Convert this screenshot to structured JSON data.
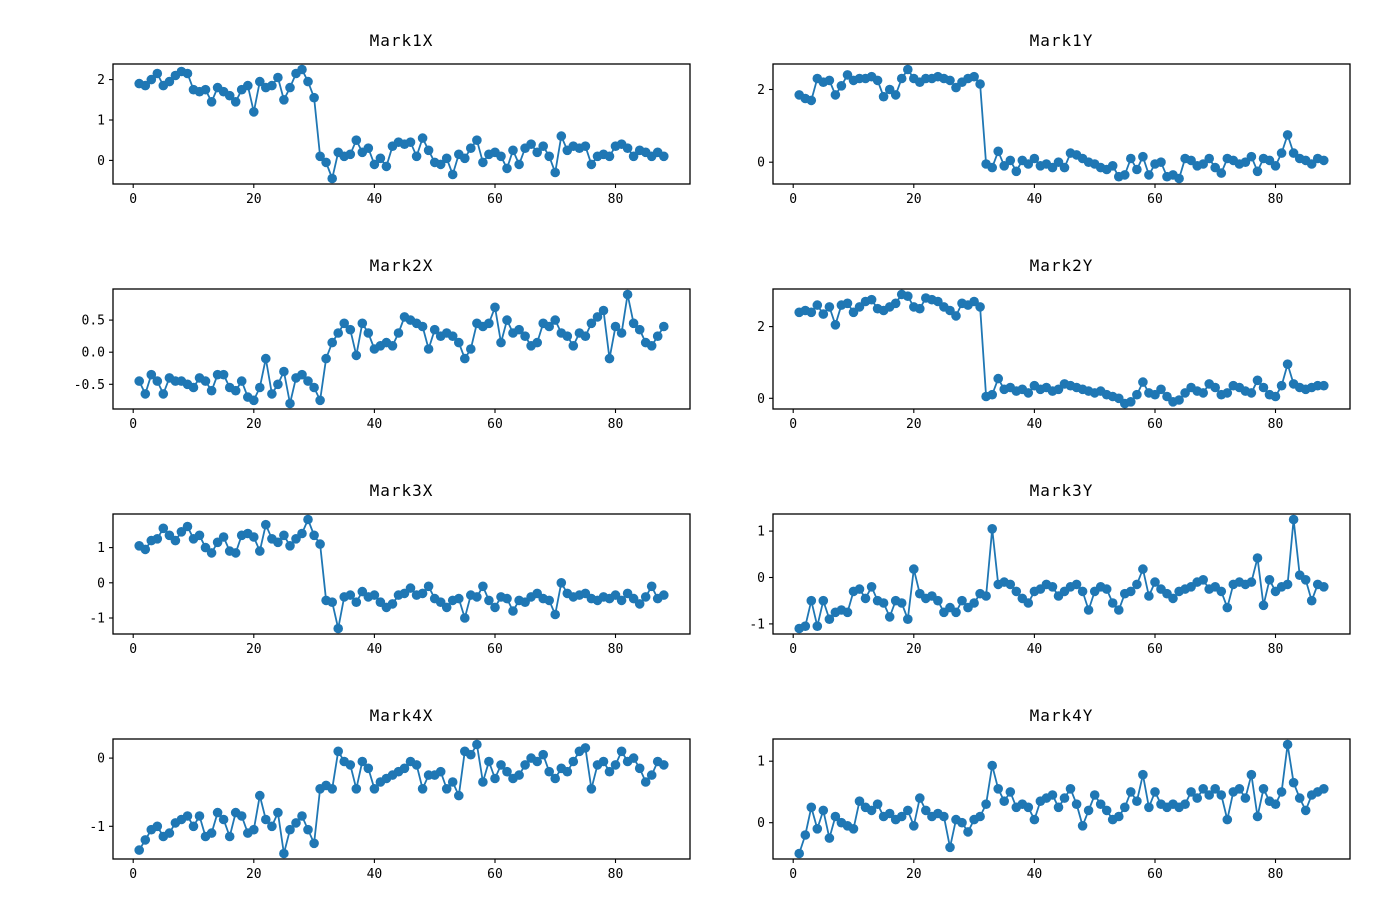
{
  "figure": {
    "background": "#ffffff",
    "grid_rows": 4,
    "grid_cols": 2
  },
  "chart_data": {
    "type": "line",
    "marker": "circle",
    "line_color": "#1f77b4",
    "axis_color": "#000000",
    "grid": false,
    "legend": false,
    "x_description": "sample index",
    "x_range": [
      1,
      88
    ],
    "xlim": [
      -3.35,
      92.35
    ],
    "xticks": [
      0,
      20,
      40,
      60,
      80
    ],
    "xtick_labels": [
      "0",
      "20",
      "40",
      "60",
      "80"
    ],
    "charts": [
      {
        "title": "Mark1X",
        "row": 0,
        "col": 0,
        "ylim": [
          -0.585,
          2.385
        ],
        "yticks": [
          0,
          1,
          2
        ],
        "ytick_labels": [
          "0",
          "1",
          "2"
        ],
        "values": [
          1.9,
          1.85,
          2.0,
          2.15,
          1.85,
          1.95,
          2.1,
          2.2,
          2.15,
          1.75,
          1.7,
          1.75,
          1.45,
          1.8,
          1.7,
          1.6,
          1.45,
          1.75,
          1.85,
          1.2,
          1.95,
          1.8,
          1.85,
          2.05,
          1.5,
          1.8,
          2.15,
          2.25,
          1.95,
          1.55,
          0.1,
          -0.05,
          -0.45,
          0.2,
          0.1,
          0.15,
          0.5,
          0.2,
          0.3,
          -0.1,
          0.05,
          -0.15,
          0.35,
          0.45,
          0.4,
          0.45,
          0.1,
          0.55,
          0.25,
          -0.05,
          -0.1,
          0.05,
          -0.35,
          0.15,
          0.05,
          0.3,
          0.5,
          -0.05,
          0.15,
          0.2,
          0.1,
          -0.2,
          0.25,
          -0.1,
          0.3,
          0.4,
          0.2,
          0.35,
          0.1,
          -0.3,
          0.6,
          0.25,
          0.35,
          0.3,
          0.35,
          -0.1,
          0.1,
          0.15,
          0.1,
          0.35,
          0.4,
          0.3,
          0.1,
          0.25,
          0.2,
          0.1,
          0.2,
          0.1
        ]
      },
      {
        "title": "Mark1Y",
        "row": 0,
        "col": 1,
        "ylim": [
          -0.6,
          2.7
        ],
        "yticks": [
          0,
          2
        ],
        "ytick_labels": [
          "0",
          "2"
        ],
        "values": [
          1.85,
          1.75,
          1.7,
          2.3,
          2.2,
          2.25,
          1.85,
          2.1,
          2.4,
          2.25,
          2.3,
          2.3,
          2.35,
          2.25,
          1.8,
          2.0,
          1.85,
          2.3,
          2.55,
          2.3,
          2.2,
          2.3,
          2.3,
          2.35,
          2.3,
          2.25,
          2.05,
          2.2,
          2.3,
          2.35,
          2.15,
          -0.05,
          -0.15,
          0.3,
          -0.1,
          0.05,
          -0.25,
          0.05,
          -0.05,
          0.1,
          -0.1,
          -0.05,
          -0.15,
          0.0,
          -0.15,
          0.25,
          0.2,
          0.1,
          0.0,
          -0.05,
          -0.15,
          -0.2,
          -0.1,
          -0.4,
          -0.35,
          0.1,
          -0.2,
          0.15,
          -0.35,
          -0.05,
          0.0,
          -0.4,
          -0.35,
          -0.45,
          0.1,
          0.05,
          -0.1,
          -0.05,
          0.1,
          -0.15,
          -0.3,
          0.1,
          0.05,
          -0.05,
          0.0,
          0.15,
          -0.25,
          0.1,
          0.05,
          -0.1,
          0.25,
          0.75,
          0.25,
          0.1,
          0.05,
          -0.05,
          0.1,
          0.05
        ]
      },
      {
        "title": "Mark2X",
        "row": 1,
        "col": 0,
        "ylim": [
          -0.885,
          0.985
        ],
        "yticks": [
          -0.5,
          0.0,
          0.5
        ],
        "ytick_labels": [
          "-0.5",
          "0.0",
          "0.5"
        ],
        "values": [
          -0.45,
          -0.65,
          -0.35,
          -0.45,
          -0.65,
          -0.4,
          -0.45,
          -0.45,
          -0.5,
          -0.55,
          -0.4,
          -0.45,
          -0.6,
          -0.35,
          -0.35,
          -0.55,
          -0.6,
          -0.45,
          -0.7,
          -0.75,
          -0.55,
          -0.1,
          -0.65,
          -0.5,
          -0.3,
          -0.8,
          -0.4,
          -0.35,
          -0.45,
          -0.55,
          -0.75,
          -0.1,
          0.15,
          0.3,
          0.45,
          0.35,
          -0.05,
          0.45,
          0.3,
          0.05,
          0.1,
          0.15,
          0.1,
          0.3,
          0.55,
          0.5,
          0.45,
          0.4,
          0.05,
          0.35,
          0.25,
          0.3,
          0.25,
          0.15,
          -0.1,
          0.05,
          0.45,
          0.4,
          0.45,
          0.7,
          0.15,
          0.5,
          0.3,
          0.35,
          0.25,
          0.1,
          0.15,
          0.45,
          0.4,
          0.5,
          0.3,
          0.25,
          0.1,
          0.3,
          0.25,
          0.45,
          0.55,
          0.65,
          -0.1,
          0.4,
          0.3,
          0.9,
          0.45,
          0.35,
          0.15,
          0.1,
          0.25,
          0.4
        ]
      },
      {
        "title": "Mark2Y",
        "row": 1,
        "col": 1,
        "ylim": [
          -0.3,
          3.05
        ],
        "yticks": [
          0,
          2
        ],
        "ytick_labels": [
          "0",
          "2"
        ],
        "values": [
          2.4,
          2.45,
          2.4,
          2.6,
          2.35,
          2.55,
          2.05,
          2.6,
          2.65,
          2.4,
          2.55,
          2.7,
          2.75,
          2.5,
          2.45,
          2.55,
          2.65,
          2.9,
          2.85,
          2.55,
          2.5,
          2.8,
          2.75,
          2.7,
          2.55,
          2.45,
          2.3,
          2.65,
          2.6,
          2.7,
          2.55,
          0.05,
          0.1,
          0.55,
          0.25,
          0.3,
          0.2,
          0.25,
          0.15,
          0.35,
          0.25,
          0.3,
          0.2,
          0.25,
          0.4,
          0.35,
          0.3,
          0.25,
          0.2,
          0.15,
          0.2,
          0.1,
          0.05,
          0.0,
          -0.15,
          -0.1,
          0.1,
          0.45,
          0.15,
          0.1,
          0.25,
          0.05,
          -0.1,
          -0.05,
          0.15,
          0.3,
          0.2,
          0.15,
          0.4,
          0.3,
          0.1,
          0.15,
          0.35,
          0.3,
          0.2,
          0.15,
          0.5,
          0.3,
          0.1,
          0.05,
          0.35,
          0.95,
          0.4,
          0.3,
          0.25,
          0.3,
          0.35,
          0.35
        ]
      },
      {
        "title": "Mark3X",
        "row": 2,
        "col": 0,
        "ylim": [
          -1.455,
          1.955
        ],
        "yticks": [
          -1,
          0,
          1
        ],
        "ytick_labels": [
          "-1",
          "0",
          "1"
        ],
        "values": [
          1.05,
          0.95,
          1.2,
          1.25,
          1.55,
          1.35,
          1.2,
          1.45,
          1.6,
          1.25,
          1.35,
          1.0,
          0.85,
          1.15,
          1.3,
          0.9,
          0.85,
          1.35,
          1.4,
          1.3,
          0.9,
          1.65,
          1.25,
          1.15,
          1.35,
          1.05,
          1.25,
          1.4,
          1.8,
          1.35,
          1.1,
          -0.5,
          -0.55,
          -1.3,
          -0.4,
          -0.35,
          -0.55,
          -0.25,
          -0.4,
          -0.35,
          -0.55,
          -0.7,
          -0.6,
          -0.35,
          -0.3,
          -0.15,
          -0.35,
          -0.3,
          -0.1,
          -0.45,
          -0.55,
          -0.7,
          -0.5,
          -0.45,
          -1.0,
          -0.35,
          -0.4,
          -0.1,
          -0.5,
          -0.7,
          -0.4,
          -0.45,
          -0.8,
          -0.5,
          -0.55,
          -0.4,
          -0.3,
          -0.45,
          -0.5,
          -0.9,
          0.0,
          -0.3,
          -0.4,
          -0.35,
          -0.3,
          -0.45,
          -0.5,
          -0.4,
          -0.45,
          -0.35,
          -0.5,
          -0.3,
          -0.45,
          -0.6,
          -0.4,
          -0.1,
          -0.45,
          -0.35
        ]
      },
      {
        "title": "Mark3Y",
        "row": 2,
        "col": 1,
        "ylim": [
          -1.218,
          1.368
        ],
        "yticks": [
          -1,
          0,
          1
        ],
        "ytick_labels": [
          "-1",
          "0",
          "1"
        ],
        "values": [
          -1.1,
          -1.05,
          -0.5,
          -1.05,
          -0.5,
          -0.9,
          -0.75,
          -0.7,
          -0.75,
          -0.3,
          -0.25,
          -0.45,
          -0.2,
          -0.5,
          -0.55,
          -0.85,
          -0.5,
          -0.55,
          -0.9,
          0.18,
          -0.35,
          -0.45,
          -0.4,
          -0.5,
          -0.75,
          -0.65,
          -0.75,
          -0.5,
          -0.65,
          -0.55,
          -0.35,
          -0.4,
          1.05,
          -0.15,
          -0.1,
          -0.15,
          -0.3,
          -0.45,
          -0.55,
          -0.3,
          -0.25,
          -0.15,
          -0.2,
          -0.4,
          -0.3,
          -0.2,
          -0.15,
          -0.3,
          -0.7,
          -0.3,
          -0.2,
          -0.25,
          -0.55,
          -0.7,
          -0.35,
          -0.3,
          -0.15,
          0.18,
          -0.4,
          -0.1,
          -0.25,
          -0.35,
          -0.45,
          -0.3,
          -0.25,
          -0.2,
          -0.1,
          -0.05,
          -0.25,
          -0.2,
          -0.3,
          -0.65,
          -0.15,
          -0.1,
          -0.15,
          -0.1,
          0.42,
          -0.6,
          -0.05,
          -0.3,
          -0.2,
          -0.15,
          1.25,
          0.05,
          -0.05,
          -0.5,
          -0.15,
          -0.2
        ]
      },
      {
        "title": "Mark4X",
        "row": 3,
        "col": 0,
        "ylim": [
          -1.48,
          0.28
        ],
        "yticks": [
          -1,
          0
        ],
        "ytick_labels": [
          "-1",
          "0"
        ],
        "values": [
          -1.35,
          -1.2,
          -1.05,
          -1.0,
          -1.15,
          -1.1,
          -0.95,
          -0.9,
          -0.85,
          -1.0,
          -0.85,
          -1.15,
          -1.1,
          -0.8,
          -0.9,
          -1.15,
          -0.8,
          -0.85,
          -1.1,
          -1.05,
          -0.55,
          -0.9,
          -1.0,
          -0.8,
          -1.4,
          -1.05,
          -0.95,
          -0.85,
          -1.05,
          -1.25,
          -0.45,
          -0.4,
          -0.45,
          0.1,
          -0.05,
          -0.1,
          -0.45,
          -0.05,
          -0.15,
          -0.45,
          -0.35,
          -0.3,
          -0.25,
          -0.2,
          -0.15,
          -0.05,
          -0.1,
          -0.45,
          -0.25,
          -0.25,
          -0.2,
          -0.45,
          -0.35,
          -0.55,
          0.1,
          0.05,
          0.2,
          -0.35,
          -0.05,
          -0.3,
          -0.1,
          -0.2,
          -0.3,
          -0.25,
          -0.1,
          0.0,
          -0.05,
          0.05,
          -0.2,
          -0.3,
          -0.15,
          -0.2,
          -0.05,
          0.1,
          0.15,
          -0.45,
          -0.1,
          -0.05,
          -0.2,
          -0.1,
          0.1,
          -0.05,
          0.0,
          -0.15,
          -0.35,
          -0.25,
          -0.05,
          -0.1
        ]
      },
      {
        "title": "Mark4Y",
        "row": 3,
        "col": 1,
        "ylim": [
          -0.59,
          1.36
        ],
        "yticks": [
          0,
          1
        ],
        "ytick_labels": [
          "0",
          "1"
        ],
        "values": [
          -0.5,
          -0.2,
          0.25,
          -0.1,
          0.2,
          -0.25,
          0.1,
          0.0,
          -0.05,
          -0.1,
          0.35,
          0.25,
          0.2,
          0.3,
          0.1,
          0.15,
          0.05,
          0.1,
          0.2,
          -0.05,
          0.4,
          0.2,
          0.1,
          0.15,
          0.1,
          -0.4,
          0.05,
          0.0,
          -0.15,
          0.05,
          0.1,
          0.3,
          0.93,
          0.55,
          0.35,
          0.5,
          0.25,
          0.3,
          0.25,
          0.05,
          0.35,
          0.4,
          0.45,
          0.25,
          0.4,
          0.55,
          0.3,
          -0.05,
          0.2,
          0.45,
          0.3,
          0.2,
          0.05,
          0.1,
          0.25,
          0.5,
          0.35,
          0.78,
          0.25,
          0.5,
          0.3,
          0.25,
          0.3,
          0.25,
          0.3,
          0.5,
          0.4,
          0.55,
          0.45,
          0.55,
          0.45,
          0.05,
          0.5,
          0.55,
          0.4,
          0.78,
          0.1,
          0.55,
          0.35,
          0.3,
          0.5,
          1.27,
          0.65,
          0.4,
          0.2,
          0.45,
          0.5,
          0.55
        ]
      }
    ]
  }
}
